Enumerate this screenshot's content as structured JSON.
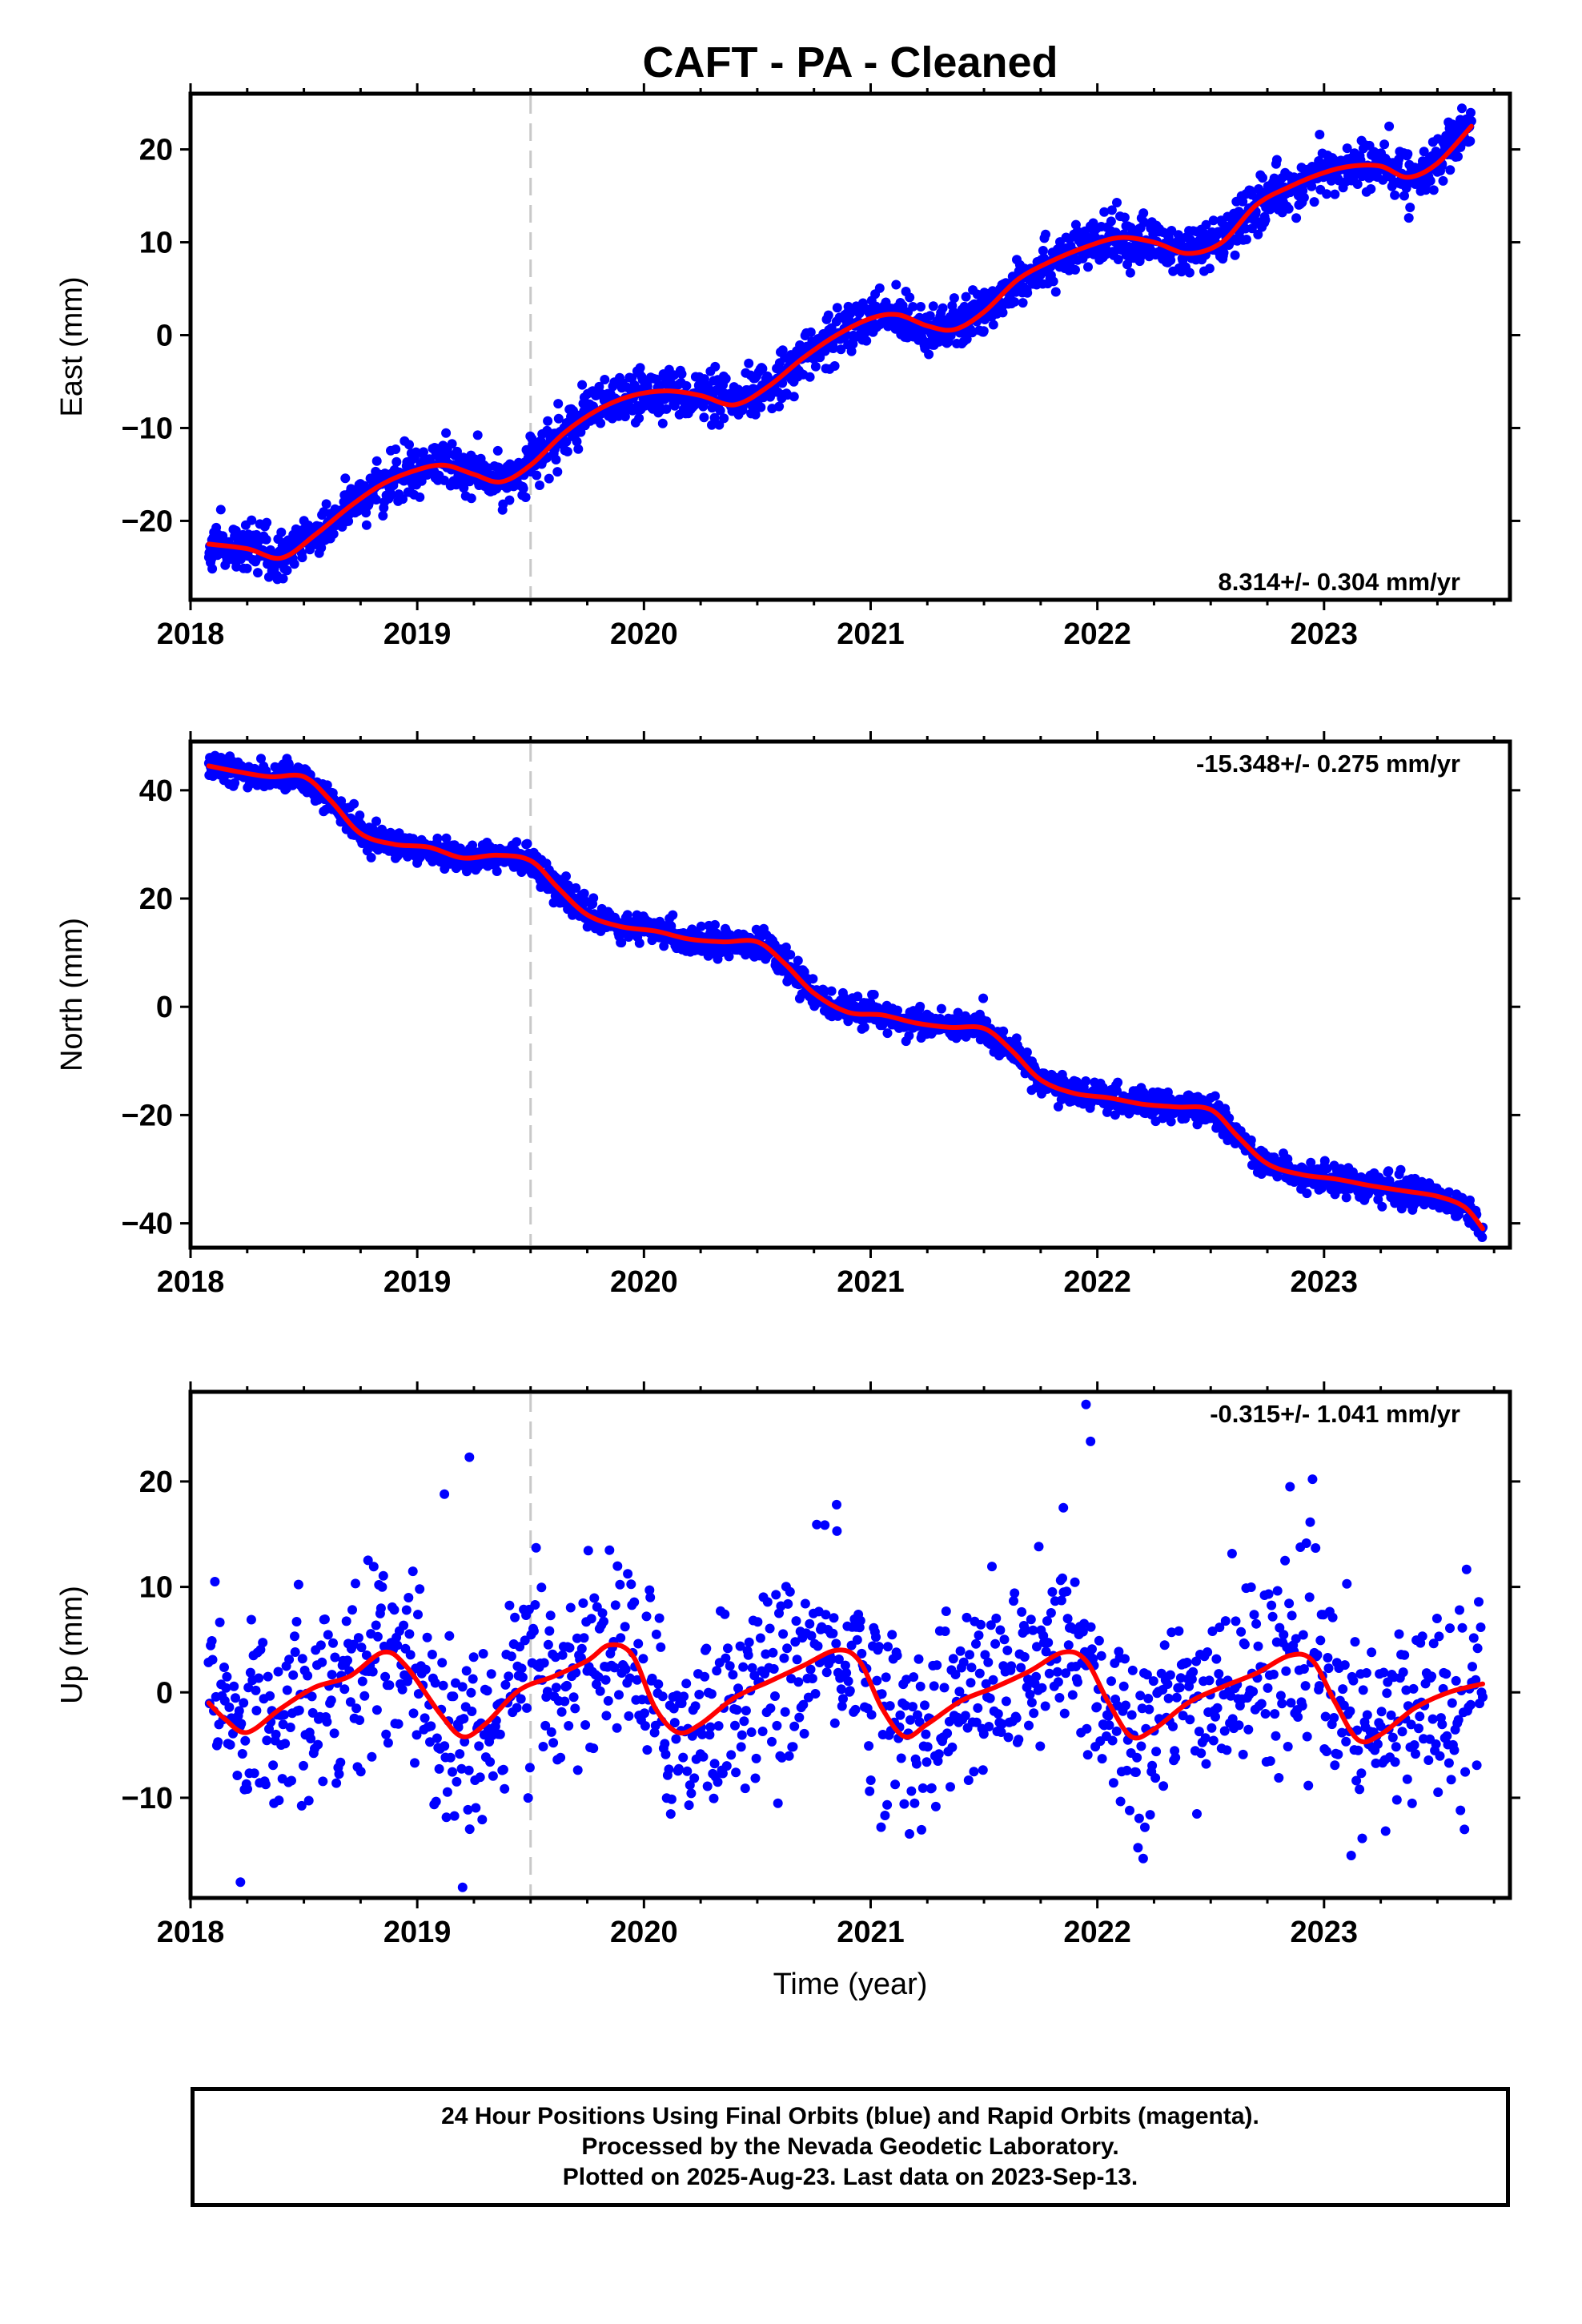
{
  "title": "CAFT  - PA - Cleaned",
  "x_axis_label": "Time (year)",
  "footer": {
    "line1": "24 Hour Positions Using Final Orbits (blue) and Rapid Orbits (magenta).",
    "line2": "Processed by the Nevada Geodetic Laboratory.",
    "line3": "Plotted on 2025-Aug-23. Last data on 2023-Sep-13."
  },
  "colors": {
    "points": "#0000ff",
    "model": "#ff0000",
    "event_line": "#c8c8c8",
    "frame": "#000000"
  },
  "chart_data": [
    {
      "type": "scatter",
      "component": "east",
      "ylabel": "East (mm)",
      "rate": "8.314+/- 0.304 mm/yr",
      "xlim": [
        2018.0,
        2023.82
      ],
      "ylim": [
        -28.5,
        26
      ],
      "xticks": [
        2018,
        2019,
        2020,
        2021,
        2022,
        2023
      ],
      "yticks": [
        -20,
        -10,
        0,
        10,
        20
      ],
      "event_line_x": 2019.5,
      "point_color": "blue",
      "model_color": "red",
      "scatter_spread_mm": 1.3,
      "model_line": {
        "x": [
          2018.08,
          2018.25,
          2018.4,
          2018.55,
          2018.7,
          2018.85,
          2019.0,
          2019.12,
          2019.25,
          2019.37,
          2019.5,
          2019.65,
          2019.8,
          2019.95,
          2020.1,
          2020.25,
          2020.4,
          2020.55,
          2020.7,
          2020.85,
          2021.0,
          2021.12,
          2021.25,
          2021.37,
          2021.5,
          2021.65,
          2021.8,
          2021.95,
          2022.1,
          2022.25,
          2022.4,
          2022.55,
          2022.7,
          2022.85,
          2023.0,
          2023.12,
          2023.25,
          2023.37,
          2023.5,
          2023.65
        ],
        "y": [
          -22.5,
          -23.0,
          -24.0,
          -21.5,
          -18.5,
          -16.0,
          -14.5,
          -14.0,
          -15.0,
          -15.8,
          -14.0,
          -10.5,
          -8.0,
          -6.5,
          -6.0,
          -6.5,
          -7.5,
          -5.5,
          -2.5,
          0.0,
          1.8,
          2.2,
          1.0,
          0.6,
          2.5,
          6.0,
          8.0,
          9.5,
          10.5,
          10.0,
          8.8,
          10.0,
          14.0,
          16.0,
          17.5,
          18.2,
          18.2,
          17.0,
          18.5,
          22.5
        ]
      }
    },
    {
      "type": "scatter",
      "component": "north",
      "ylabel": "North (mm)",
      "rate": "-15.348+/- 0.275 mm/yr",
      "xlim": [
        2018.0,
        2023.82
      ],
      "ylim": [
        -44.5,
        49
      ],
      "xticks": [
        2018,
        2019,
        2020,
        2021,
        2022,
        2023
      ],
      "yticks": [
        -40,
        -20,
        0,
        20,
        40
      ],
      "event_line_x": 2019.5,
      "point_color": "blue",
      "model_color": "red",
      "scatter_spread_mm": 1.3,
      "model_line": {
        "x": [
          2018.08,
          2018.2,
          2018.35,
          2018.5,
          2018.62,
          2018.75,
          2018.9,
          2019.05,
          2019.2,
          2019.35,
          2019.5,
          2019.62,
          2019.75,
          2019.9,
          2020.05,
          2020.2,
          2020.35,
          2020.5,
          2020.62,
          2020.75,
          2020.9,
          2021.05,
          2021.2,
          2021.35,
          2021.5,
          2021.62,
          2021.75,
          2021.9,
          2022.05,
          2022.2,
          2022.35,
          2022.5,
          2022.62,
          2022.75,
          2022.9,
          2023.05,
          2023.2,
          2023.35,
          2023.5,
          2023.62,
          2023.7
        ],
        "y": [
          44.5,
          43.5,
          42.5,
          42.5,
          38.0,
          32.0,
          30.0,
          29.5,
          27.5,
          28.0,
          27.0,
          22.0,
          17.0,
          14.8,
          14.0,
          12.5,
          12.0,
          12.0,
          8.0,
          2.5,
          -1.0,
          -1.5,
          -3.0,
          -3.8,
          -4.0,
          -8.0,
          -13.5,
          -16.0,
          -16.8,
          -18.0,
          -18.5,
          -19.0,
          -24.0,
          -29.0,
          -31.0,
          -31.8,
          -33.0,
          -34.0,
          -35.0,
          -37.0,
          -41.0
        ]
      }
    },
    {
      "type": "scatter",
      "component": "up",
      "ylabel": "Up (mm)",
      "rate": "-0.315+/- 1.041 mm/yr",
      "xlim": [
        2018.0,
        2023.82
      ],
      "ylim": [
        -19.5,
        28.5
      ],
      "xticks": [
        2018,
        2019,
        2020,
        2021,
        2022,
        2023
      ],
      "yticks": [
        -10,
        0,
        10,
        20
      ],
      "event_line_x": 2019.5,
      "point_color": "blue",
      "model_color": "red",
      "scatter_spread_mm": 4.5,
      "outliers": [
        [
          2019.12,
          18.8
        ],
        [
          2019.23,
          22.3
        ],
        [
          2021.95,
          27.3
        ],
        [
          2021.97,
          23.8
        ],
        [
          2018.22,
          -18.0
        ],
        [
          2019.2,
          -18.5
        ],
        [
          2021.85,
          17.5
        ],
        [
          2020.85,
          17.8
        ],
        [
          2022.85,
          19.5
        ]
      ],
      "model_line": {
        "x": [
          2018.08,
          2018.15,
          2018.25,
          2018.4,
          2018.55,
          2018.7,
          2018.85,
          2018.95,
          2019.1,
          2019.2,
          2019.3,
          2019.45,
          2019.6,
          2019.75,
          2019.85,
          2019.95,
          2020.05,
          2020.15,
          2020.25,
          2020.4,
          2020.55,
          2020.7,
          2020.85,
          2020.95,
          2021.05,
          2021.15,
          2021.25,
          2021.4,
          2021.55,
          2021.7,
          2021.85,
          2021.95,
          2022.05,
          2022.15,
          2022.25,
          2022.4,
          2022.55,
          2022.7,
          2022.85,
          2022.95,
          2023.05,
          2023.15,
          2023.25,
          2023.4,
          2023.55,
          2023.7
        ],
        "y": [
          -1.0,
          -2.5,
          -3.8,
          -1.5,
          0.5,
          1.5,
          3.8,
          2.5,
          -2.0,
          -4.2,
          -3.0,
          0.2,
          1.5,
          3.0,
          4.5,
          3.5,
          -1.5,
          -3.8,
          -3.0,
          -0.5,
          1.0,
          2.5,
          4.0,
          3.0,
          -1.5,
          -4.2,
          -3.0,
          -0.8,
          0.5,
          2.0,
          3.8,
          3.0,
          -1.0,
          -4.2,
          -3.5,
          -1.0,
          0.5,
          1.8,
          3.5,
          3.0,
          -1.0,
          -4.5,
          -4.0,
          -1.5,
          0.0,
          0.8
        ]
      }
    }
  ]
}
